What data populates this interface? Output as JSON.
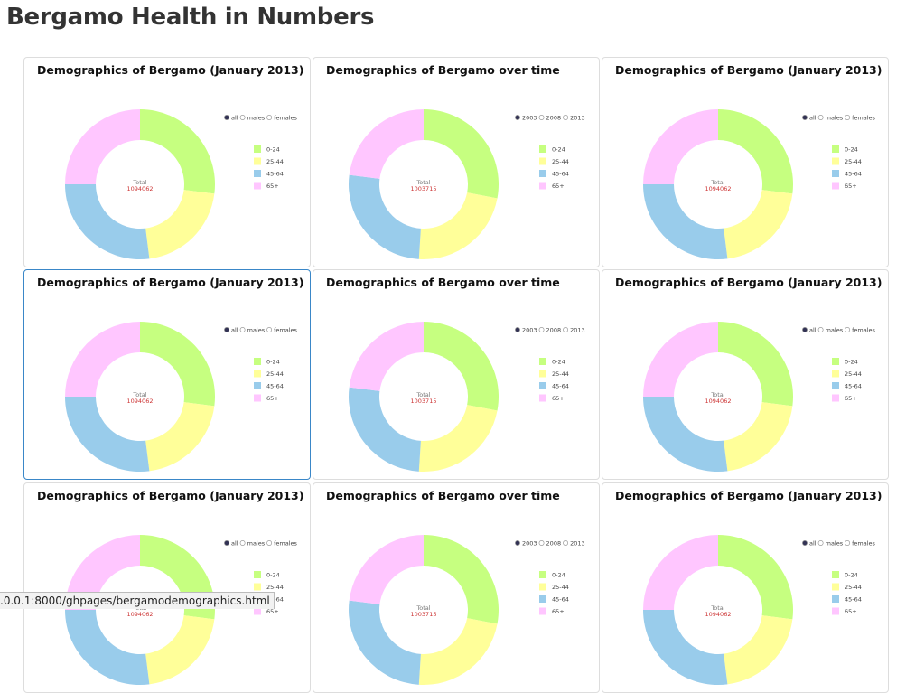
{
  "header": {
    "title": "Bergamo Health in Numbers"
  },
  "panels": [
    {
      "title": "Demographics of Bergamo (January 2013)",
      "options": [
        "all",
        "males",
        "females"
      ],
      "selected": 0,
      "categories": [
        "0-24",
        "25-44",
        "45-64",
        "65+"
      ],
      "colors": [
        "#c6ff80",
        "#ffff99",
        "#99cceb",
        "#ffc6ff"
      ],
      "values": [
        27,
        21,
        27,
        25
      ],
      "total_label": "Total",
      "total_value": "1094062"
    },
    {
      "title": "Demographics of Bergamo over time",
      "options": [
        "2003",
        "2008",
        "2013"
      ],
      "selected": 0,
      "categories": [
        "0-24",
        "25-44",
        "45-64",
        "65+"
      ],
      "colors": [
        "#c6ff80",
        "#ffff99",
        "#99cceb",
        "#ffc6ff"
      ],
      "values": [
        28,
        23,
        26,
        23
      ],
      "total_label": "Total",
      "total_value": "1003715"
    },
    {
      "title": "Demographics of Bergamo (January 2013)",
      "options": [
        "all",
        "males",
        "females"
      ],
      "selected": 0,
      "categories": [
        "0-24",
        "25-44",
        "45-64",
        "65+"
      ],
      "colors": [
        "#c6ff80",
        "#ffff99",
        "#99cceb",
        "#ffc6ff"
      ],
      "values": [
        27,
        21,
        27,
        25
      ],
      "total_label": "Total",
      "total_value": "1094062"
    },
    {
      "title": "Demographics of Bergamo (January 2013)",
      "options": [
        "all",
        "males",
        "females"
      ],
      "selected": 0,
      "categories": [
        "0-24",
        "25-44",
        "45-64",
        "65+"
      ],
      "colors": [
        "#c6ff80",
        "#ffff99",
        "#99cceb",
        "#ffc6ff"
      ],
      "values": [
        27,
        21,
        27,
        25
      ],
      "total_label": "Total",
      "total_value": "1094062"
    },
    {
      "title": "Demographics of Bergamo over time",
      "options": [
        "2003",
        "2008",
        "2013"
      ],
      "selected": 0,
      "categories": [
        "0-24",
        "25-44",
        "45-64",
        "65+"
      ],
      "colors": [
        "#c6ff80",
        "#ffff99",
        "#99cceb",
        "#ffc6ff"
      ],
      "values": [
        28,
        23,
        26,
        23
      ],
      "total_label": "Total",
      "total_value": "1003715"
    },
    {
      "title": "Demographics of Bergamo (January 2013)",
      "options": [
        "all",
        "males",
        "females"
      ],
      "selected": 0,
      "categories": [
        "0-24",
        "25-44",
        "45-64",
        "65+"
      ],
      "colors": [
        "#c6ff80",
        "#ffff99",
        "#99cceb",
        "#ffc6ff"
      ],
      "values": [
        27,
        21,
        27,
        25
      ],
      "total_label": "Total",
      "total_value": "1094062"
    },
    {
      "title": "Demographics of Bergamo (January 2013)",
      "options": [
        "all",
        "males",
        "females"
      ],
      "selected": 0,
      "categories": [
        "0-24",
        "25-44",
        "45-64",
        "65+"
      ],
      "colors": [
        "#c6ff80",
        "#ffff99",
        "#99cceb",
        "#ffc6ff"
      ],
      "values": [
        27,
        21,
        27,
        25
      ],
      "total_label": "Total",
      "total_value": "1094062"
    },
    {
      "title": "Demographics of Bergamo over time",
      "options": [
        "2003",
        "2008",
        "2013"
      ],
      "selected": 0,
      "categories": [
        "0-24",
        "25-44",
        "45-64",
        "65+"
      ],
      "colors": [
        "#c6ff80",
        "#ffff99",
        "#99cceb",
        "#ffc6ff"
      ],
      "values": [
        28,
        23,
        26,
        23
      ],
      "total_label": "Total",
      "total_value": "1003715"
    },
    {
      "title": "Demographics of Bergamo (January 2013)",
      "options": [
        "all",
        "males",
        "females"
      ],
      "selected": 0,
      "categories": [
        "0-24",
        "25-44",
        "45-64",
        "65+"
      ],
      "colors": [
        "#c6ff80",
        "#ffff99",
        "#99cceb",
        "#ffc6ff"
      ],
      "values": [
        27,
        21,
        27,
        25
      ],
      "total_label": "Total",
      "total_value": "1094062"
    }
  ],
  "status_bar": {
    "url": ".0.0.1:8000/ghpages/bergamodemographics.html"
  }
}
